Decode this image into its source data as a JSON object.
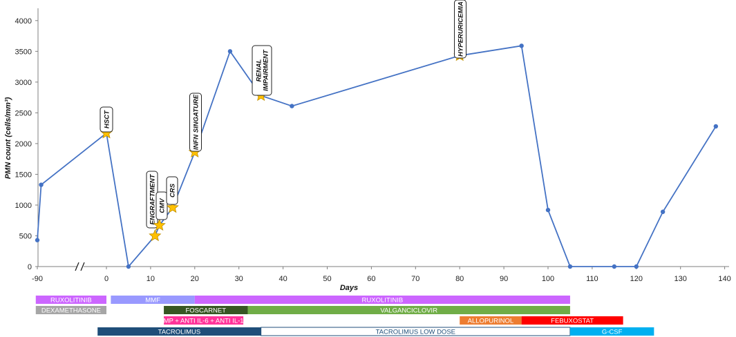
{
  "chart_data": {
    "type": "line",
    "xlabel": "Days",
    "ylabel": "PMN count (cells/mm³)",
    "ylim": [
      0,
      4200
    ],
    "x_ticks": [
      "-90",
      "0",
      "10",
      "20",
      "30",
      "40",
      "50",
      "60",
      "70",
      "80",
      "90",
      "100",
      "110",
      "120",
      "130",
      "140"
    ],
    "y_ticks": [
      "0",
      "500",
      "1000",
      "1500",
      "2000",
      "2500",
      "3000",
      "3500",
      "4000"
    ],
    "axis_break": "between -90 and 0",
    "series": [
      {
        "color": "#4472C4",
        "points": [
          {
            "x": -90,
            "y": 430
          },
          {
            "x": -85,
            "y": 1330
          },
          {
            "x": 0,
            "y": 2170
          },
          {
            "x": 5,
            "y": 0
          },
          {
            "x": 11,
            "y": 500
          },
          {
            "x": 12,
            "y": 670
          },
          {
            "x": 15,
            "y": 960
          },
          {
            "x": 20,
            "y": 1860
          },
          {
            "x": 28,
            "y": 3500
          },
          {
            "x": 35,
            "y": 2780
          },
          {
            "x": 42,
            "y": 2610
          },
          {
            "x": 80,
            "y": 3430
          },
          {
            "x": 94,
            "y": 3590
          },
          {
            "x": 100,
            "y": 920
          },
          {
            "x": 105,
            "y": 0
          },
          {
            "x": 115,
            "y": 0
          },
          {
            "x": 120,
            "y": 0
          },
          {
            "x": 126,
            "y": 890
          },
          {
            "x": 138,
            "y": 2280
          }
        ]
      }
    ],
    "annotations": [
      {
        "label": "HSCT",
        "x": 0,
        "y": 2170,
        "marker": "star"
      },
      {
        "label": "ENGRAFTMENT",
        "x": 11,
        "y": 500,
        "marker": "star"
      },
      {
        "label": "CMV",
        "x": 12,
        "y": 670,
        "marker": "star"
      },
      {
        "label": "CRS",
        "x": 15,
        "y": 960,
        "marker": "star"
      },
      {
        "label": "INFN SINGATURE",
        "x": 20,
        "y": 1860,
        "marker": "star"
      },
      {
        "label": "RENAL\nIMPAIRMENT",
        "x": 35,
        "y": 2780,
        "marker": "star"
      },
      {
        "label": "HYPERURICEMIA",
        "x": 80,
        "y": 3430,
        "marker": "star"
      }
    ],
    "therapy_bars": [
      {
        "label": "RUXOLITINIB",
        "start": -92,
        "end": 0,
        "row": 0,
        "color": "#CC66FF",
        "text_color": "#ffffff"
      },
      {
        "label": "MMF",
        "start": 1,
        "end": 20,
        "row": 0,
        "color": "#9999FF",
        "text_color": "#ffffff"
      },
      {
        "label": "RUXOLITINIB",
        "start": 20,
        "end": 105,
        "row": 0,
        "color": "#CC66FF",
        "text_color": "#ffffff"
      },
      {
        "label": "DEXAMETHASONE",
        "start": -92,
        "end": 0,
        "row": 1,
        "color": "#A6A6A6",
        "text_color": "#ffffff"
      },
      {
        "label": "FOSCARNET",
        "start": 13,
        "end": 32,
        "row": 1,
        "color": "#375623",
        "text_color": "#ffffff"
      },
      {
        "label": "VALGANCICLOVIR",
        "start": 32,
        "end": 105,
        "row": 1,
        "color": "#70AD47",
        "text_color": "#ffffff"
      },
      {
        "label": "MP + ANTI IL-6 + ANTI IL-1",
        "start": 13,
        "end": 31,
        "row": 2,
        "color": "#FF3399",
        "text_color": "#ffffff"
      },
      {
        "label": "ALLOPURINOL",
        "start": 80,
        "end": 94,
        "row": 2,
        "color": "#ED7D31",
        "text_color": "#ffffff"
      },
      {
        "label": "FEBUXOSTAT",
        "start": 94,
        "end": 117,
        "row": 2,
        "color": "#FF0000",
        "text_color": "#ffffff"
      },
      {
        "label": "TACROLIMUS",
        "start": -2,
        "end": 35,
        "row": 3,
        "color": "#1F4E79",
        "text_color": "#ffffff"
      },
      {
        "label": "TACROLIMUS  LOW DOSE",
        "start": 35,
        "end": 105,
        "row": 3,
        "color": "#ffffff",
        "text_color": "#1F4E79",
        "border": "#1F4E79"
      },
      {
        "label": "G-CSF",
        "start": 105,
        "end": 124,
        "row": 3,
        "color": "#00B0F0",
        "text_color": "#ffffff"
      }
    ]
  }
}
